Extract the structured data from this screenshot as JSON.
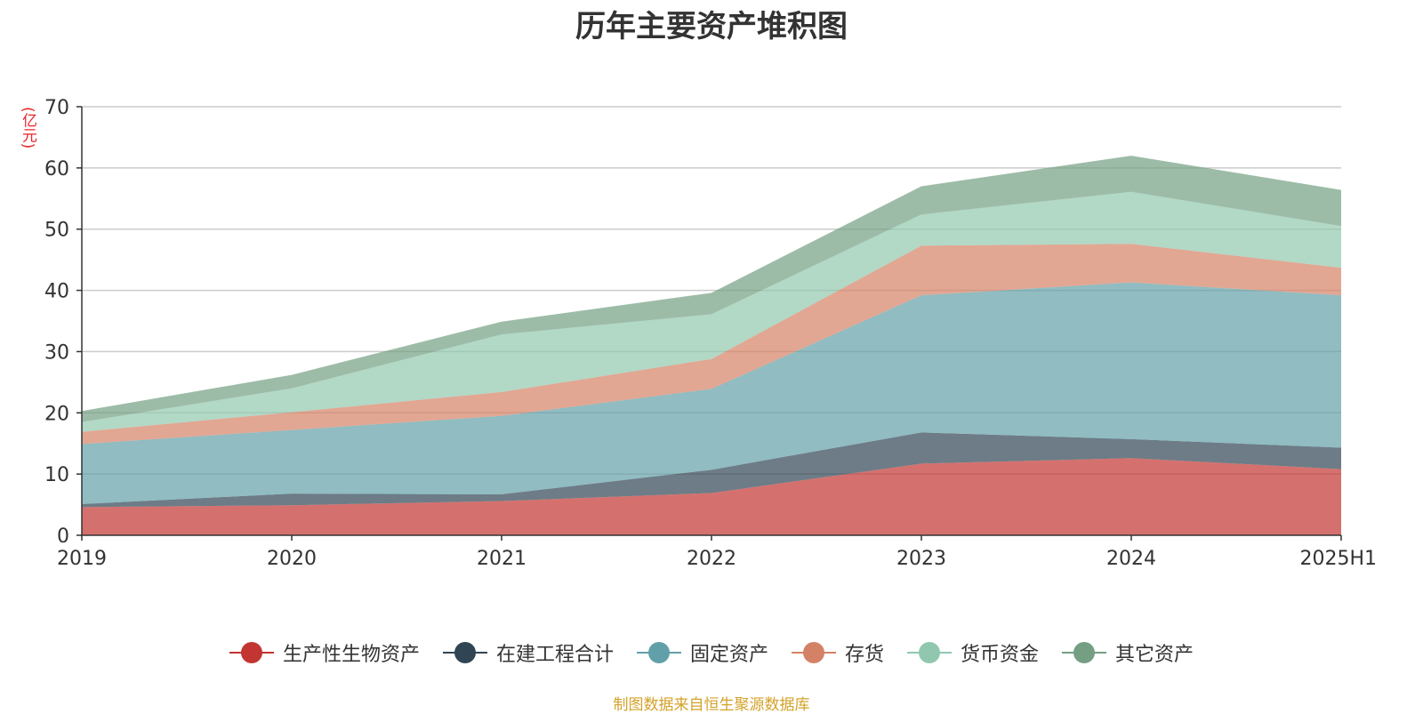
{
  "chart_data": {
    "type": "area",
    "stacked": true,
    "title": "历年主要资产堆积图",
    "unit": "(亿元)",
    "categories": [
      "2019",
      "2020",
      "2021",
      "2022",
      "2023",
      "2024",
      "2025H1"
    ],
    "yticks": [
      "0",
      "10",
      "20",
      "30",
      "40",
      "50",
      "60",
      "70"
    ],
    "ylim": [
      0,
      70
    ],
    "grid": true,
    "legend_position": "bottom",
    "series": [
      {
        "name": "生产性生物资产",
        "color": "#c23531",
        "values": [
          4.6,
          4.9,
          5.6,
          6.9,
          11.7,
          12.6,
          10.8
        ]
      },
      {
        "name": "在建工程合计",
        "color": "#2f4554",
        "values": [
          0.5,
          1.9,
          1.1,
          3.8,
          5.1,
          3.1,
          3.5
        ]
      },
      {
        "name": "固定资产",
        "color": "#61a0a8",
        "values": [
          9.8,
          10.4,
          12.8,
          13.2,
          22.4,
          25.6,
          24.9
        ]
      },
      {
        "name": "存货",
        "color": "#d48265",
        "values": [
          2.0,
          2.9,
          3.9,
          4.9,
          8.1,
          6.3,
          4.5
        ]
      },
      {
        "name": "货币资金",
        "color": "#91c7ae",
        "values": [
          1.6,
          3.9,
          9.4,
          7.3,
          5.1,
          8.5,
          6.8
        ]
      },
      {
        "name": "其它资产",
        "color": "#749f83",
        "values": [
          1.8,
          2.2,
          2.1,
          3.5,
          4.6,
          5.9,
          5.9
        ]
      }
    ]
  },
  "source_note": "制图数据来自恒生聚源数据库"
}
